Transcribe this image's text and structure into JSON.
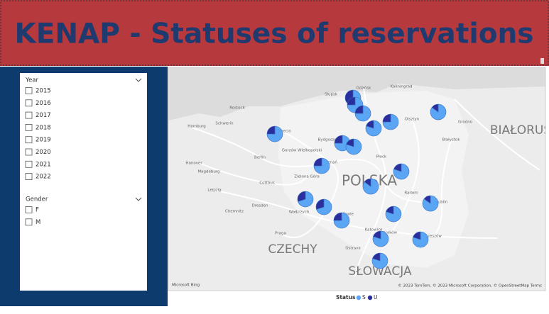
{
  "header": {
    "title": "KENAP - Statuses of reservations"
  },
  "slicers": [
    {
      "title": "Year",
      "items": [
        "2015",
        "2016",
        "2017",
        "2018",
        "2019",
        "2020",
        "2021",
        "2022"
      ]
    },
    {
      "title": "Gender",
      "items": [
        "F",
        "M"
      ]
    }
  ],
  "map": {
    "countries": [
      "POLSKA",
      "CZECHY",
      "SŁOWACJA",
      "BIAŁORUŚ"
    ],
    "cities": [
      "Rostock",
      "Hamburg",
      "Schwerin",
      "Szczecin",
      "Słupsk",
      "Gdańsk",
      "Kaliningrad",
      "Olsztyn",
      "Grodno",
      "Białystok",
      "Bydgoszcz",
      "Gorzów Wielkopolski",
      "Poznań",
      "Berlin",
      "Hanover",
      "Magdeburg",
      "Płock",
      "Zielona Góra",
      "Cottbus",
      "Leipzig",
      "Radom",
      "Lublin",
      "Wałbrzych",
      "Opole",
      "Dresden",
      "Chemnitz",
      "Praga",
      "Katowice",
      "Kraków",
      "Rzeszów",
      "Ostrava"
    ],
    "markers": [
      {
        "values": [
          50,
          50
        ]
      },
      {
        "values": [
          75,
          25
        ]
      },
      {
        "values": [
          75,
          25
        ]
      },
      {
        "values": [
          80,
          20
        ]
      },
      {
        "values": [
          75,
          25
        ]
      },
      {
        "values": [
          85,
          15
        ]
      },
      {
        "values": [
          75,
          25
        ]
      },
      {
        "values": [
          75,
          25
        ]
      },
      {
        "values": [
          80,
          20
        ]
      },
      {
        "values": [
          75,
          25
        ]
      },
      {
        "values": [
          80,
          20
        ]
      },
      {
        "values": [
          85,
          15
        ]
      },
      {
        "values": [
          70,
          30
        ]
      },
      {
        "values": [
          70,
          30
        ]
      },
      {
        "values": [
          75,
          25
        ]
      },
      {
        "values": [
          80,
          20
        ]
      },
      {
        "values": [
          85,
          15
        ]
      },
      {
        "values": [
          80,
          20
        ]
      },
      {
        "values": [
          80,
          20
        ]
      },
      {
        "values": [
          80,
          20
        ]
      }
    ],
    "attribution": "Microsoft Bing",
    "copyright": "© 2023 TomTom, © 2023 Microsoft Corporation, © OpenStreetMap  Terms"
  },
  "legend": {
    "title": "Status",
    "items": [
      {
        "name": "S",
        "color": "#5aa6f5"
      },
      {
        "name": "U",
        "color": "#2b2f9e"
      }
    ]
  }
}
